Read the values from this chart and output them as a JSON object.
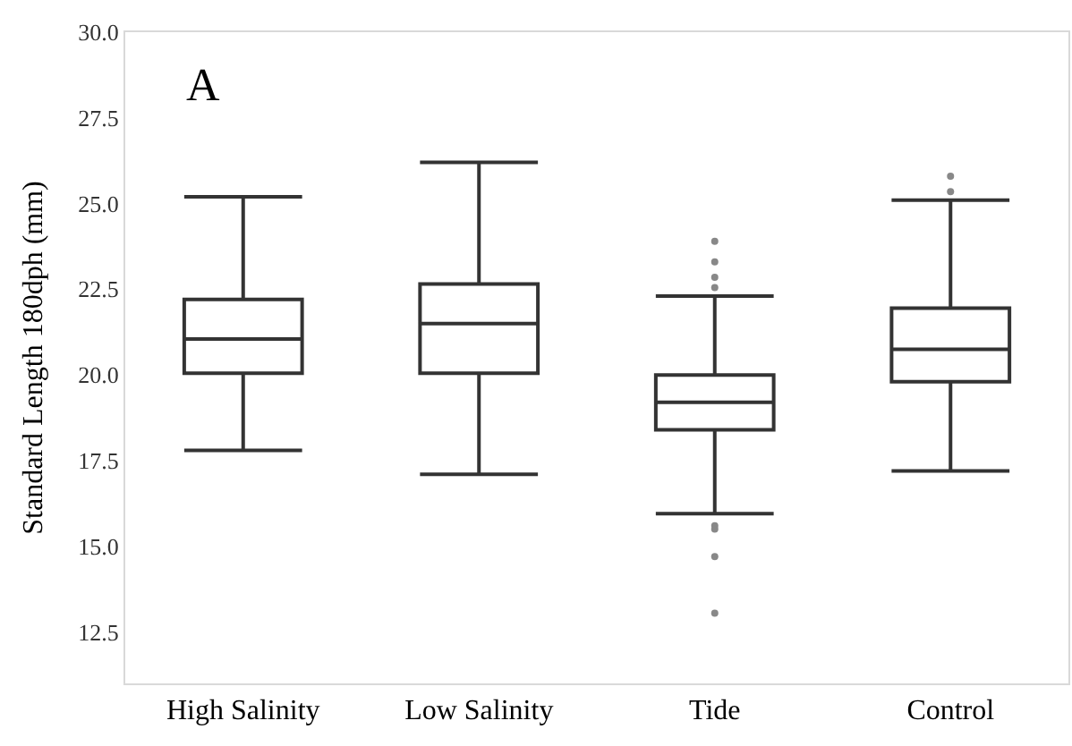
{
  "chart_data": {
    "type": "box",
    "ylabel": "Standard Length 180dph (mm)",
    "categories": [
      "High Salinity",
      "Low Salinity",
      "Tide",
      "Control"
    ],
    "series": [
      {
        "color": "#333333",
        "boxes": [
          {
            "low": 17.8,
            "q1": 20.05,
            "median": 21.05,
            "q3": 22.2,
            "high": 25.2
          },
          {
            "low": 17.1,
            "q1": 20.05,
            "median": 21.5,
            "q3": 22.65,
            "high": 26.2
          },
          {
            "low": 15.95,
            "q1": 18.4,
            "median": 19.2,
            "q3": 20.0,
            "high": 22.3
          },
          {
            "low": 17.2,
            "q1": 19.8,
            "median": 20.75,
            "q3": 21.95,
            "high": 25.1
          }
        ]
      },
      {
        "type": "scatter",
        "color": "#888888",
        "x": [
          "Tide",
          "Tide",
          "Tide",
          "Tide",
          "Tide",
          "Tide",
          "Tide",
          "Tide",
          "Control",
          "Control"
        ],
        "values": [
          23.9,
          23.3,
          22.85,
          22.55,
          15.6,
          15.5,
          14.7,
          13.05,
          25.8,
          25.35
        ]
      }
    ],
    "ylim": [
      11.0,
      30.0
    ],
    "yticks": [
      12.5,
      {
        "value": 15,
        "label": "15.0"
      },
      17.5,
      {
        "value": 20,
        "label": "20.0"
      },
      22.5,
      {
        "value": 25,
        "label": "25.0"
      },
      27.5,
      {
        "value": 30,
        "label": "30.0"
      }
    ],
    "legend": false,
    "marker": "circle",
    "annotations": [
      "A"
    ]
  }
}
